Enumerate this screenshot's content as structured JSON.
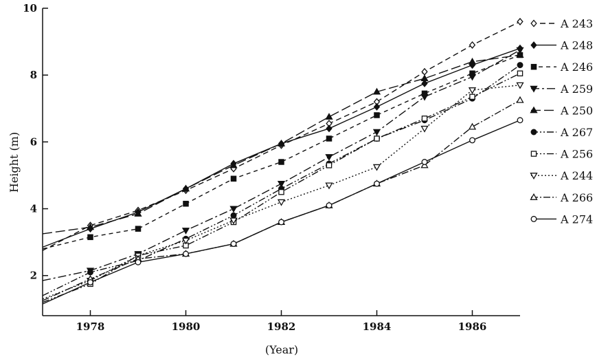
{
  "chart_data": {
    "type": "line",
    "title": "",
    "xlabel": "(Year)",
    "ylabel": "Height (m)",
    "xlim": [
      1977,
      1987
    ],
    "ylim": [
      0.8,
      10
    ],
    "x_ticks": [
      1978,
      1980,
      1982,
      1984,
      1986
    ],
    "x_tick_labels": [
      "1978",
      "1980",
      "1982",
      "1984",
      "1986"
    ],
    "y_ticks": [
      2,
      4,
      6,
      8,
      10
    ],
    "y_tick_labels": [
      "2",
      "4",
      "6",
      "8",
      "10"
    ],
    "grid": false,
    "legend_position": "right",
    "x": [
      1977,
      1978,
      1979,
      1980,
      1981,
      1982,
      1983,
      1984,
      1985,
      1986,
      1987
    ],
    "series": [
      {
        "name": "A 243",
        "marker": "diamond-open",
        "dash": "8,5",
        "values": [
          2.75,
          3.5,
          3.95,
          4.55,
          5.2,
          5.9,
          6.55,
          7.2,
          8.1,
          8.9,
          9.6
        ]
      },
      {
        "name": "A 248",
        "marker": "diamond-filled",
        "dash": "",
        "values": [
          2.85,
          3.4,
          3.9,
          4.6,
          5.35,
          5.95,
          6.4,
          7.05,
          7.75,
          8.3,
          8.8
        ]
      },
      {
        "name": "A 246",
        "marker": "square-filled",
        "dash": "6,5",
        "values": [
          2.8,
          3.15,
          3.4,
          4.15,
          4.9,
          5.4,
          6.1,
          6.8,
          7.45,
          8.05,
          8.6
        ]
      },
      {
        "name": "A 259",
        "marker": "triangle-down-filled",
        "dash": "12,4,3,4",
        "values": [
          1.85,
          2.15,
          2.65,
          3.35,
          4.0,
          4.75,
          5.55,
          6.3,
          7.35,
          7.95,
          8.75
        ]
      },
      {
        "name": "A 250",
        "marker": "triangle-up-filled",
        "dash": "14,5",
        "values": [
          3.25,
          3.45,
          3.85,
          4.6,
          5.3,
          5.95,
          6.75,
          7.5,
          7.9,
          8.4,
          8.6
        ]
      },
      {
        "name": "A 267",
        "marker": "circle-filled",
        "dash": "10,3,2,3,2,3",
        "values": [
          1.4,
          2.1,
          2.45,
          3.1,
          3.8,
          4.6,
          5.35,
          6.1,
          6.65,
          7.3,
          8.3
        ]
      },
      {
        "name": "A 256",
        "marker": "square-open",
        "dash": "10,3,2,3,2,3",
        "values": [
          1.2,
          1.75,
          2.6,
          2.9,
          3.6,
          4.5,
          5.3,
          6.1,
          6.7,
          7.35,
          8.05
        ]
      },
      {
        "name": "A 244",
        "marker": "triangle-down-open",
        "dash": "2,3",
        "values": [
          1.3,
          1.85,
          2.6,
          3.05,
          3.65,
          4.2,
          4.7,
          5.25,
          6.4,
          7.55,
          7.7
        ]
      },
      {
        "name": "A 266",
        "marker": "triangle-up-open",
        "dash": "10,3,2,3",
        "values": [
          1.25,
          1.9,
          2.5,
          2.65,
          2.95,
          3.6,
          4.1,
          4.75,
          5.3,
          6.45,
          7.25
        ]
      },
      {
        "name": "A 274",
        "marker": "circle-open",
        "dash": "",
        "values": [
          1.15,
          1.8,
          2.4,
          2.65,
          2.95,
          3.6,
          4.1,
          4.75,
          5.4,
          6.05,
          6.65
        ]
      }
    ]
  }
}
